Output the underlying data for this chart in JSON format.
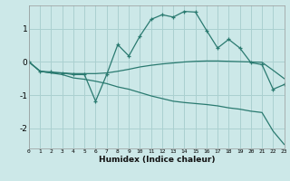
{
  "title": "",
  "xlabel": "Humidex (Indice chaleur)",
  "ylabel": "",
  "bg_color": "#cce8e8",
  "grid_color": "#aad0d0",
  "line_color": "#2a7a70",
  "xlim": [
    0,
    23
  ],
  "ylim": [
    -2.6,
    1.7
  ],
  "xticks": [
    0,
    1,
    2,
    3,
    4,
    5,
    6,
    7,
    8,
    9,
    10,
    11,
    12,
    13,
    14,
    15,
    16,
    17,
    18,
    19,
    20,
    21,
    22,
    23
  ],
  "yticks": [
    -2,
    -1,
    0,
    1
  ],
  "line1_x": [
    0,
    1,
    2,
    3,
    4,
    5,
    6,
    7,
    8,
    9,
    10,
    11,
    12,
    13,
    14,
    15,
    16,
    17,
    18,
    19,
    20,
    21,
    22,
    23
  ],
  "line1_y": [
    0.0,
    -0.28,
    -0.3,
    -0.33,
    -0.38,
    -0.38,
    -1.18,
    -0.38,
    0.52,
    0.18,
    0.78,
    1.28,
    1.42,
    1.35,
    1.52,
    1.5,
    0.95,
    0.42,
    0.68,
    0.42,
    -0.02,
    -0.08,
    -0.82,
    -0.68
  ],
  "line2_x": [
    0,
    1,
    2,
    3,
    4,
    5,
    6,
    7,
    8,
    9,
    10,
    11,
    12,
    13,
    14,
    15,
    16,
    17,
    18,
    19,
    20,
    21,
    22,
    23
  ],
  "line2_y": [
    0.0,
    -0.28,
    -0.33,
    -0.33,
    -0.35,
    -0.35,
    -0.35,
    -0.33,
    -0.28,
    -0.22,
    -0.15,
    -0.1,
    -0.06,
    -0.03,
    0.0,
    0.02,
    0.03,
    0.03,
    0.02,
    0.01,
    0.0,
    -0.01,
    -0.25,
    -0.5
  ],
  "line3_x": [
    0,
    1,
    2,
    3,
    4,
    5,
    6,
    7,
    8,
    9,
    10,
    11,
    12,
    13,
    14,
    15,
    16,
    17,
    18,
    19,
    20,
    21,
    22,
    23
  ],
  "line3_y": [
    0.0,
    -0.28,
    -0.33,
    -0.38,
    -0.48,
    -0.52,
    -0.58,
    -0.65,
    -0.75,
    -0.82,
    -0.92,
    -1.02,
    -1.1,
    -1.18,
    -1.22,
    -1.25,
    -1.28,
    -1.32,
    -1.38,
    -1.42,
    -1.48,
    -1.52,
    -2.08,
    -2.48
  ]
}
